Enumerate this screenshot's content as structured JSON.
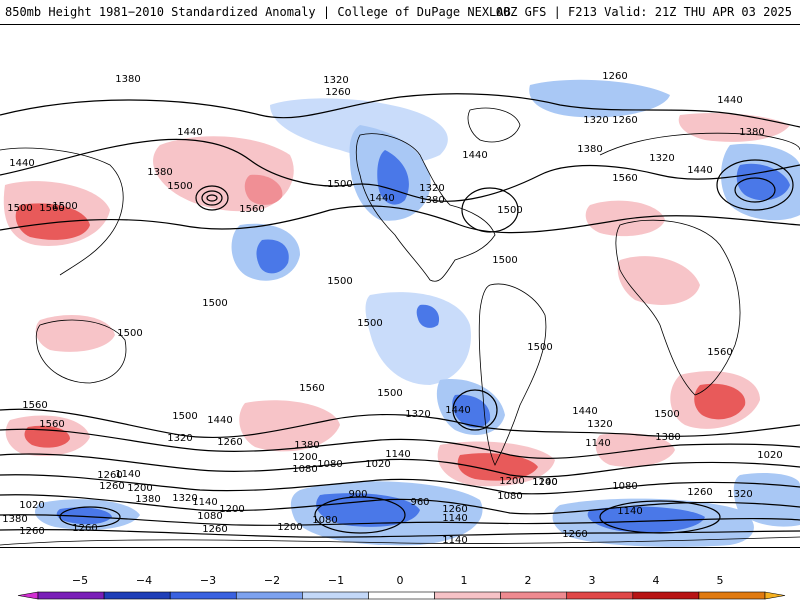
{
  "header": {
    "title": "850mb Height 1981−2010 Standardized Anomaly | College of DuPage NEXLAB",
    "run_info": "00Z GFS | F213 Valid: 21Z THU APR 03 2025"
  },
  "colors": {
    "blue_dark": "#1f3fd6",
    "blue_mid": "#4a78e8",
    "blue_light": "#a9c8f5",
    "blue_pale": "#c9dcfa",
    "red_pale": "#f7c4c8",
    "red_light": "#f08f95",
    "red_mid": "#e85a5a",
    "red_dark": "#b41818",
    "magenta": "#c020c0"
  },
  "contour_labels": [
    {
      "text": "1380"
    },
    {
      "text": "1320"
    },
    {
      "text": "1260"
    },
    {
      "text": "1260"
    },
    {
      "text": "1440"
    },
    {
      "text": "1320"
    },
    {
      "text": "1260"
    },
    {
      "text": "1440"
    },
    {
      "text": "1380"
    },
    {
      "text": "1380"
    },
    {
      "text": "1440"
    },
    {
      "text": "1500"
    },
    {
      "text": "1560"
    },
    {
      "text": "1500"
    },
    {
      "text": "1500"
    },
    {
      "text": "1560"
    },
    {
      "text": "1440"
    },
    {
      "text": "1320"
    },
    {
      "text": "1380"
    },
    {
      "text": "1440"
    },
    {
      "text": "1500"
    },
    {
      "text": "1560"
    },
    {
      "text": "1380"
    },
    {
      "text": "1320"
    },
    {
      "text": "1440"
    },
    {
      "text": "1500"
    },
    {
      "text": "1500"
    },
    {
      "text": "1500"
    },
    {
      "text": "1500"
    },
    {
      "text": "1500"
    },
    {
      "text": "1500"
    },
    {
      "text": "1500"
    },
    {
      "text": "1560"
    },
    {
      "text": "1560"
    },
    {
      "text": "1560"
    },
    {
      "text": "1500"
    },
    {
      "text": "1440"
    },
    {
      "text": "1320"
    },
    {
      "text": "1440"
    },
    {
      "text": "1320"
    },
    {
      "text": "1500"
    },
    {
      "text": "1380"
    },
    {
      "text": "1140"
    },
    {
      "text": "1560"
    },
    {
      "text": "1500"
    },
    {
      "text": "1440"
    },
    {
      "text": "1320"
    },
    {
      "text": "1260"
    },
    {
      "text": "1380"
    },
    {
      "text": "1200"
    },
    {
      "text": "1140"
    },
    {
      "text": "1080"
    },
    {
      "text": "1260"
    },
    {
      "text": "1200"
    },
    {
      "text": "1140"
    },
    {
      "text": "1320"
    },
    {
      "text": "1260"
    },
    {
      "text": "1380"
    },
    {
      "text": "1140"
    },
    {
      "text": "1200"
    },
    {
      "text": "1080"
    },
    {
      "text": "1020"
    },
    {
      "text": "900"
    },
    {
      "text": "960"
    },
    {
      "text": "1140"
    },
    {
      "text": "1080"
    },
    {
      "text": "1200"
    },
    {
      "text": "1260"
    },
    {
      "text": "1140"
    },
    {
      "text": "1020"
    },
    {
      "text": "1080"
    },
    {
      "text": "1260"
    },
    {
      "text": "1320"
    },
    {
      "text": "1080"
    },
    {
      "text": "1140"
    },
    {
      "text": "1200"
    },
    {
      "text": "1260"
    },
    {
      "text": "1020"
    },
    {
      "text": "1140"
    },
    {
      "text": "1260"
    },
    {
      "text": "1380"
    },
    {
      "text": "1260"
    },
    {
      "text": "1200"
    },
    {
      "text": "1080"
    },
    {
      "text": "1260"
    }
  ],
  "colorbar": {
    "ticks": [
      "−5",
      "−4",
      "−3",
      "−2",
      "−1",
      "0",
      "1",
      "2",
      "3",
      "4",
      "5"
    ],
    "colors": [
      "#d22fd2",
      "#7a1fb8",
      "#1f3fb8",
      "#3a62e0",
      "#7da2ef",
      "#c3d8f8",
      "#ffffff",
      "#f6c2c6",
      "#ee8a90",
      "#e04848",
      "#b81414",
      "#e07a10",
      "#f5b020"
    ]
  }
}
